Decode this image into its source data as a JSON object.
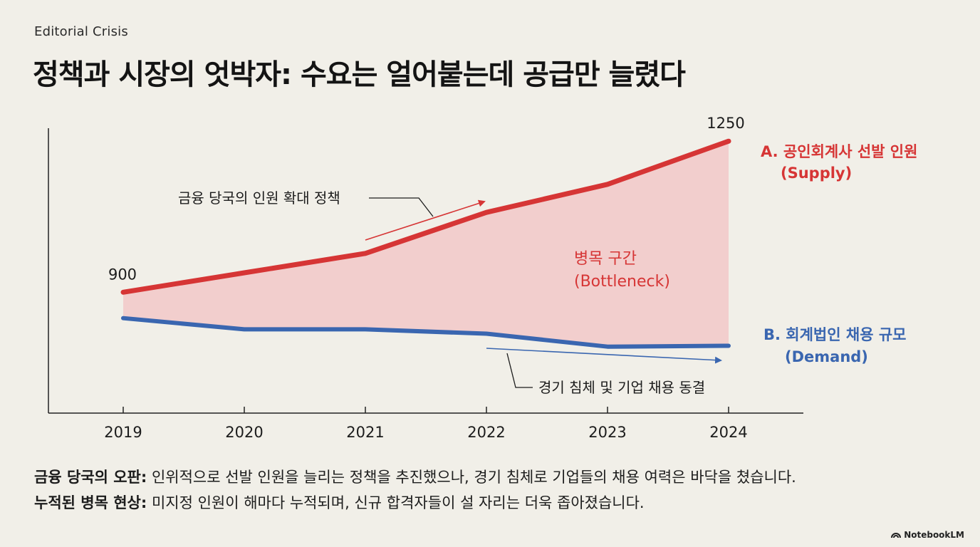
{
  "kicker": "Editorial Crisis",
  "title": "정책과 시장의 엇박자: 수요는 얼어붙는데 공급만 늘렸다",
  "colors": {
    "supply": "#d63535",
    "demand": "#3a66b0",
    "band": "#f2caca",
    "axis": "#222222",
    "text": "#1c1c1c"
  },
  "chart_data": {
    "type": "line",
    "x": [
      "2019",
      "2020",
      "2021",
      "2022",
      "2023",
      "2024"
    ],
    "ylim": [
      620,
      1280
    ],
    "series": [
      {
        "name": "A. 공인회계사 선발 인원 (Supply)",
        "label_line1": "A. 공인회계사 선발 인원",
        "label_line2": "(Supply)",
        "values": [
          900,
          945,
          990,
          1085,
          1150,
          1250
        ]
      },
      {
        "name": "B. 회계법인 채용 규모 (Demand)",
        "label_line1": "B. 회계법인 채용 규모",
        "label_line2": "(Demand)",
        "values": [
          840,
          814,
          814,
          804,
          774,
          776
        ]
      }
    ],
    "data_labels": {
      "first": "900",
      "last": "1250"
    },
    "band_label": {
      "line1": "병목 구간",
      "line2": "(Bottleneck)"
    },
    "annotations": {
      "policy": "금융 당국의 인원 확대 정책",
      "recession": "경기 침체 및 기업 채용 동결"
    },
    "grid": false,
    "xlabel": "",
    "ylabel": ""
  },
  "notes": [
    {
      "head": "금융 당국의 오판:",
      "body": " 인위적으로 선발 인원을 늘리는 정책을 추진했으나, 경기 침체로 기업들의 채용 여력은 바닥을 쳤습니다."
    },
    {
      "head": "누적된 병목 현상:",
      "body": " 미지정 인원이 해마다 누적되며, 신규 합격자들이 설 자리는 더욱 좁아졌습니다."
    }
  ],
  "brand": {
    "name": "NotebookLM",
    "icon": "notebooklm-icon"
  }
}
